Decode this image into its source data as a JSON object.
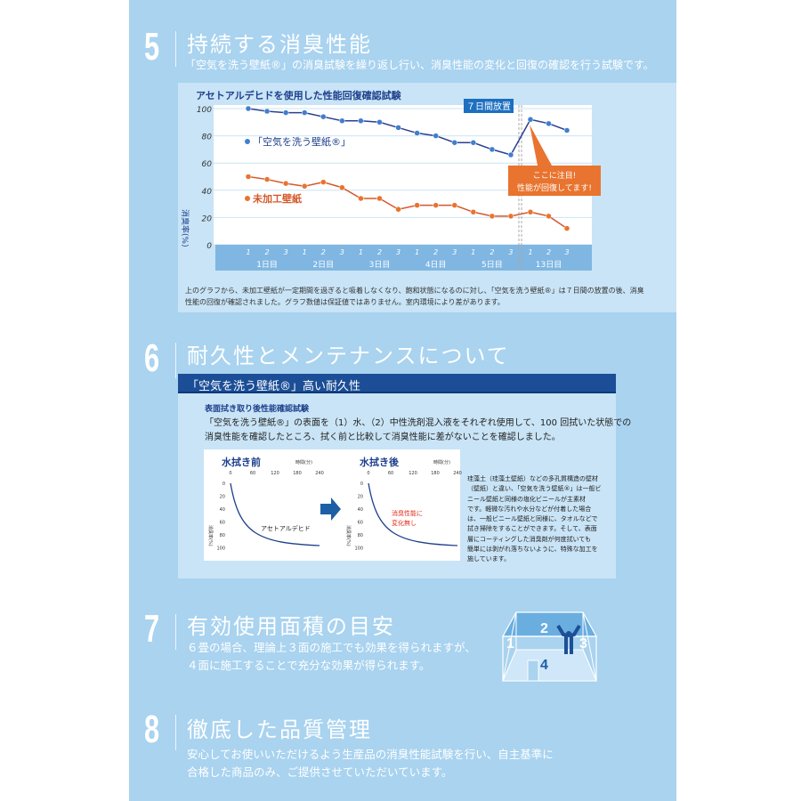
{
  "sections": [
    {
      "num": "5",
      "title": "持続する消臭性能",
      "desc": "「空気を洗う壁紙®」の消臭試験を繰り返し行い、消臭性能の変化と回復の確認を行う試験です。"
    },
    {
      "num": "6",
      "title": "耐久性とメンテナンスについて"
    },
    {
      "num": "7",
      "title": "有効使用面積の目安",
      "desc": [
        "６畳の場合、理論上３面の施工でも効果を得られますが、",
        "４面に施工することで充分な効果が得られます。"
      ]
    },
    {
      "num": "8",
      "title": "徹底した品質管理",
      "desc": [
        "安心してお使いいただけるよう生産品の消臭性能試験を行い、自主基準に",
        "合格した商品のみ、ご提供させていただいています。"
      ]
    }
  ],
  "chart_data": {
    "type": "line",
    "title": "アセトアルデヒドを使用した性能回復確認試験",
    "ylabel": "消臭率(%)",
    "ylim": [
      0,
      100
    ],
    "yticks": [
      "0",
      "20",
      "40",
      "60",
      "80",
      "100"
    ],
    "x_sub": [
      "1",
      "2",
      "3",
      "1",
      "2",
      "3",
      "1",
      "2",
      "3",
      "1",
      "2",
      "3",
      "1",
      "2",
      "3",
      "1",
      "2",
      "3"
    ],
    "groups": [
      "1日目",
      "2日目",
      "3日目",
      "4日目",
      "5日目",
      "13日目"
    ],
    "series": [
      {
        "name": "「空気を洗う壁紙®」",
        "color": "#2a3f8f",
        "values": [
          100,
          98,
          97,
          97,
          94,
          91,
          91,
          90,
          86,
          82,
          80,
          75,
          75,
          70,
          66,
          92,
          89,
          84
        ]
      },
      {
        "name": "未加工壁紙",
        "color": "#d4582a",
        "values": [
          50,
          48,
          45,
          43,
          46,
          42,
          34,
          34,
          26,
          29,
          29,
          29,
          24,
          21,
          21,
          24,
          21,
          12
        ]
      }
    ],
    "annotations": {
      "gap": "７日間放置",
      "callout1": "ここに注目!",
      "callout2": "性能が回復してます!"
    }
  },
  "chart_caption": [
    "上のグラフから、未加工壁紙が一定期間を過ぎると吸着しなくなり、飽和状態になるのに対し、「空気を洗う壁紙®」は７日間の放置の後、消臭",
    "性能の回復が確認されました。グラフ数値は保証値ではありません。室内環境により差があります。"
  ],
  "durability": {
    "header": "「空気を洗う壁紙®」高い耐久性",
    "test_title": "表面拭き取り後性能確認試験",
    "text": [
      "「空気を洗う壁紙®」の表面を（1）水、（2）中性洗剤混入液をそれぞれ使用して、100 回拭いた状態での",
      "消臭性能を確認したところ、拭く前と比較して消臭性能に差がないことを確認しました。"
    ],
    "before": {
      "title": "水拭き前",
      "unit": "時間(分)",
      "label": "アセトアルデヒド"
    },
    "after": {
      "title": "水拭き後",
      "unit": "時間(分)",
      "label1": "消臭性能に",
      "label2": "変化無し"
    },
    "xticks": [
      "0",
      "60",
      "120",
      "180",
      "240"
    ],
    "yticks": [
      "0",
      "20",
      "40",
      "60",
      "80",
      "100"
    ],
    "ylabel": "消臭率(%)",
    "side": [
      "珪藻土（珪藻土壁紙）などの多孔質構造の壁材",
      "（壁紙）と違い、「空気を洗う壁紙®」は一般ビ",
      "ニール壁紙と同様の塩化ビニールが主素材",
      "です。軽微な汚れや水分などが付着した場合",
      "は、一般ビニール壁紙と同様に、タオルなどで",
      "拭き掃除をすることができます。そして、表面",
      "層にコーティングした消臭剤が何度拭いても",
      "簡単には剥がれ落ちないように、特殊な加工を",
      "施しています。"
    ]
  },
  "room": {
    "walls": [
      "1",
      "2",
      "3",
      "4"
    ]
  }
}
